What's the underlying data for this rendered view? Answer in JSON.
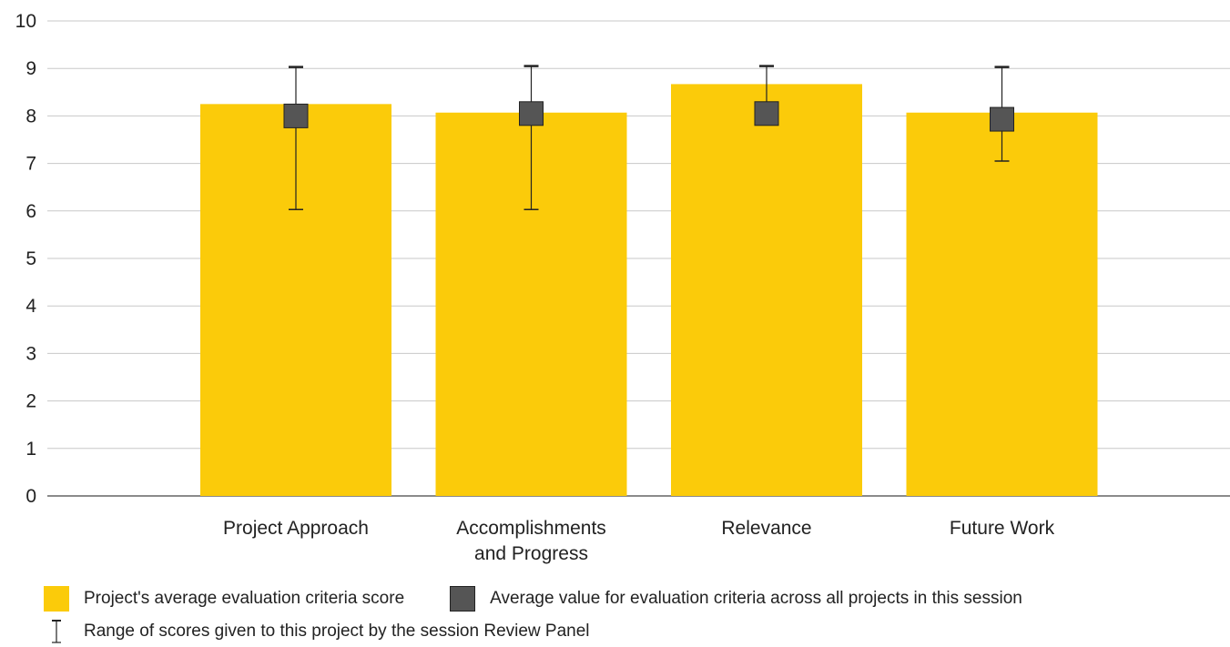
{
  "chart_data": {
    "type": "bar",
    "categories": [
      [
        "Project Approach"
      ],
      [
        "Accomplishments",
        "and Progress"
      ],
      [
        "Relevance"
      ],
      [
        "Future Work"
      ]
    ],
    "series": [
      {
        "name": "Project's average evaluation criteria score",
        "values": [
          8.25,
          8.07,
          8.67,
          8.07
        ]
      }
    ],
    "session_average": [
      8.0,
      8.05,
      8.05,
      7.93
    ],
    "range_low": [
      6.03,
      6.03,
      7.82,
      7.05
    ],
    "range_high": [
      9.03,
      9.05,
      9.05,
      9.03
    ],
    "ylim": [
      0,
      10
    ],
    "yticks": [
      0,
      1,
      2,
      3,
      4,
      5,
      6,
      7,
      8,
      9,
      10
    ],
    "grid": true,
    "legend_position": "bottom-left",
    "colors": {
      "bar": "#FBCB0A",
      "marker": "#555555",
      "grid": "#C8C8C8",
      "axis": "#8A8A8A"
    }
  },
  "legend": {
    "bar_label": "Project's average evaluation criteria score",
    "avg_label": "Average value for evaluation criteria across all projects in this session",
    "range_label": "Range of scores given to this project by the session Review Panel"
  }
}
